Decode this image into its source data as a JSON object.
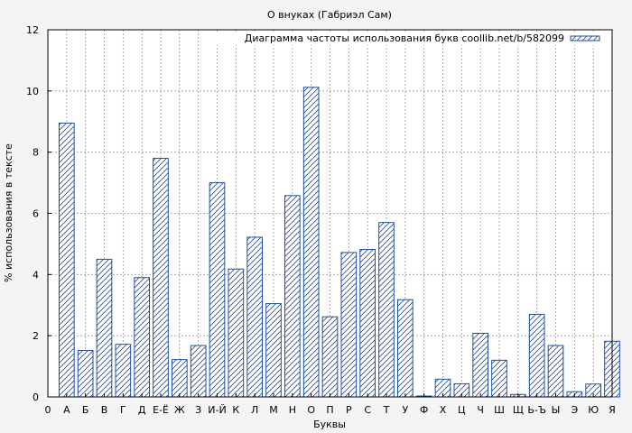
{
  "chart_data": {
    "type": "bar",
    "title": "О внуках (Габриэл Сам)",
    "xlabel": "Буквы",
    "ylabel": "% использования в тексте",
    "ylim": [
      0,
      12
    ],
    "yticks": [
      0,
      2,
      4,
      6,
      8,
      10,
      12
    ],
    "grid": true,
    "legend_position": "top-right",
    "x_origin_label": "0",
    "categories": [
      "А",
      "Б",
      "В",
      "Г",
      "Д",
      "Е-Ё",
      "Ж",
      "З",
      "И-Й",
      "К",
      "Л",
      "М",
      "Н",
      "О",
      "П",
      "Р",
      "С",
      "Т",
      "У",
      "Ф",
      "Х",
      "Ц",
      "Ч",
      "Ш",
      "Щ",
      "Ь-Ъ",
      "Ы",
      "Э",
      "Ю",
      "Я"
    ],
    "series": [
      {
        "name": "Диаграмма частоты использования букв coollib.net/b/582099",
        "color": "#1f4fa0",
        "values": [
          8.95,
          1.52,
          4.5,
          1.72,
          3.9,
          7.8,
          1.22,
          1.68,
          7.0,
          4.18,
          5.22,
          3.05,
          6.58,
          10.12,
          2.62,
          4.72,
          4.82,
          5.7,
          3.18,
          0.03,
          0.58,
          0.43,
          2.08,
          1.2,
          0.08,
          2.7,
          1.68,
          0.17,
          0.42,
          1.82
        ]
      }
    ]
  }
}
